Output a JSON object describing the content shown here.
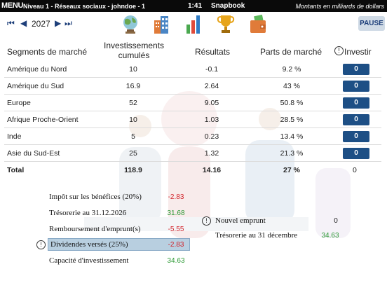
{
  "topbar": {
    "menu": "MENU",
    "level": "Niveau 1 - Réseaux sociaux - johndoe - 1",
    "time": "1:41",
    "app": "Snapbook",
    "units": "Montants en milliards de dollars"
  },
  "nav": {
    "year": "2027",
    "pause": "PAUSE",
    "icons": [
      "globe-icon",
      "buildings-icon",
      "bar-chart-icon",
      "trophy-icon",
      "wallet-icon"
    ]
  },
  "table": {
    "headers": {
      "segment": "Segments de marché",
      "investments_line1": "Investissements",
      "investments_line2": "cumulés",
      "results": "Résultats",
      "market_share": "Parts de marché",
      "invest": "Investir"
    },
    "rows": [
      {
        "name": "Amérique du Nord",
        "inv": "10",
        "res": "-0.1",
        "pdm": "9.2 %",
        "btn": "0"
      },
      {
        "name": "Amérique du Sud",
        "inv": "16.9",
        "res": "2.64",
        "pdm": "43 %",
        "btn": "0"
      },
      {
        "name": "Europe",
        "inv": "52",
        "res": "9.05",
        "pdm": "50.8 %",
        "btn": "0"
      },
      {
        "name": "Afrique Proche-Orient",
        "inv": "10",
        "res": "1.03",
        "pdm": "28.5 %",
        "btn": "0"
      },
      {
        "name": "Inde",
        "inv": "5",
        "res": "0.23",
        "pdm": "13.4 %",
        "btn": "0"
      },
      {
        "name": "Asie du Sud-Est",
        "inv": "25",
        "res": "1.32",
        "pdm": "21.3 %",
        "btn": "0"
      }
    ],
    "total": {
      "name": "Total",
      "inv": "118.9",
      "res": "14.16",
      "pdm": "27 %",
      "invest": "0"
    }
  },
  "summary": {
    "tax_label": "Impôt sur les bénéfices (20%)",
    "tax_value": "-2.83",
    "cash_label": "Trésorerie au 31.12.2026",
    "cash_value": "31.68",
    "repay_label": "Remboursement d'emprunt(s)",
    "repay_value": "-5.55",
    "div_label": "Dividendes versés (25%)",
    "div_value": "-2.83",
    "capacity_label": "Capacité d'investissement",
    "capacity_value": "34.63",
    "loan_label": "Nouvel emprunt",
    "loan_value": "0",
    "cash_dec_label": "Trésorerie au 31 décembre",
    "cash_dec_value": "34.63"
  },
  "colors": {
    "accent": "#1d4f85",
    "negative": "#d2232a",
    "positive": "#2e9a36",
    "highlight": "#b8cfe0"
  }
}
